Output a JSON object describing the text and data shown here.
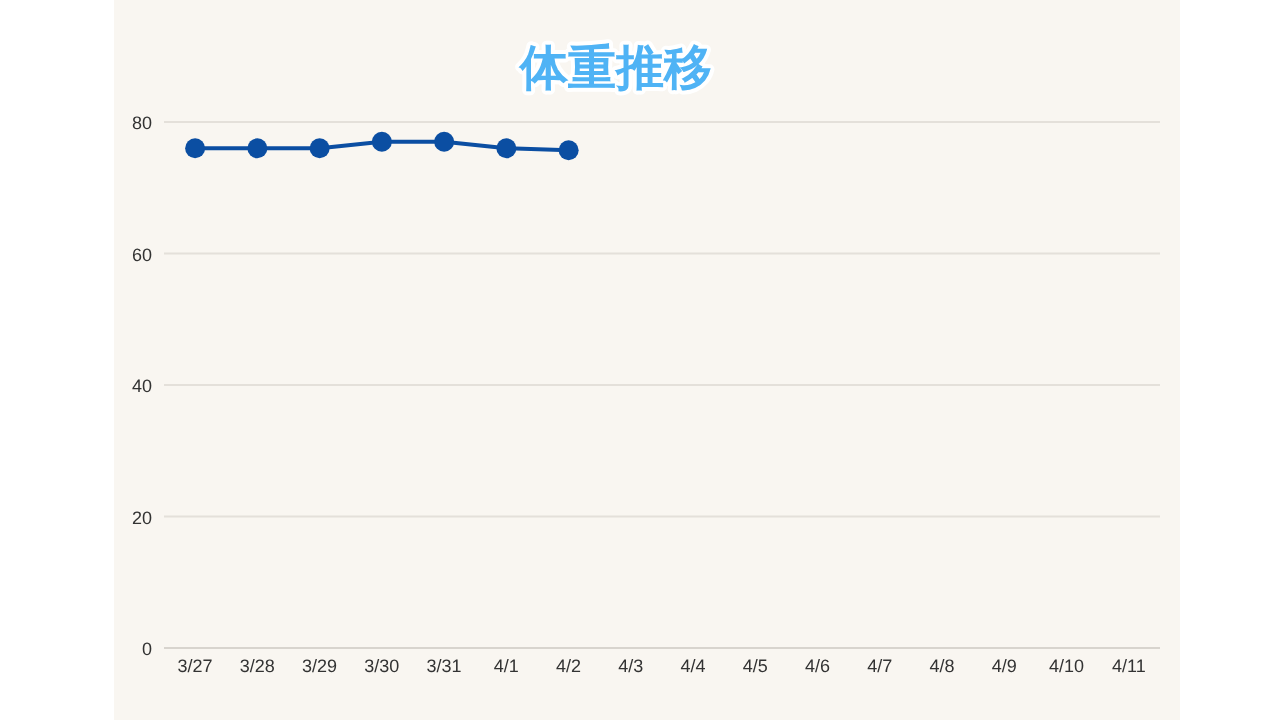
{
  "chart_data": {
    "type": "line",
    "title": "体重推移",
    "categories": [
      "3/27",
      "3/28",
      "3/29",
      "3/30",
      "3/31",
      "4/1",
      "4/2",
      "4/3",
      "4/4",
      "4/5",
      "4/6",
      "4/7",
      "4/8",
      "4/9",
      "4/10",
      "4/11"
    ],
    "series": [
      {
        "color": "#0b4ea2",
        "values": [
          76,
          76,
          76,
          77,
          77,
          76,
          75.7,
          null,
          null,
          null,
          null,
          null,
          null,
          null,
          null,
          null
        ]
      }
    ],
    "ylim": [
      0,
      80
    ],
    "yticks": [
      0,
      20,
      40,
      60,
      80
    ],
    "grid": "y",
    "marker": "circle"
  }
}
